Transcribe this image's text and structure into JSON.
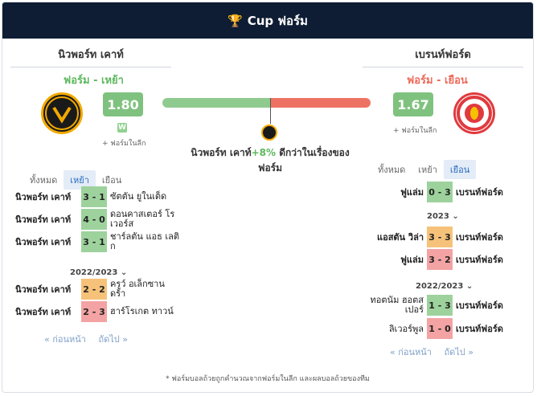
{
  "header": {
    "title": "Cup ฟอร์ม",
    "icon": "trophy-icon"
  },
  "home": {
    "name": "นิวพอร์ท เคาท์",
    "form_label": "ฟอร์ม - เหย้า",
    "rating": "1.80",
    "league_badge": "W",
    "league_form_label": "+ ฟอร์มในลีก"
  },
  "away": {
    "name": "เบรนท์ฟอร์ด",
    "form_label": "ฟอร์ม - เยือน",
    "rating": "1.67",
    "league_form_label": "+ ฟอร์มในลีก"
  },
  "comparison": {
    "home_share_pct": 52,
    "team": "นิวพอร์ท เคาท์",
    "pct": "+8%",
    "text": " ดีกว่าในเรื่องของ",
    "text2": "ฟอร์ม"
  },
  "left_tabs": [
    "ทั้งหมด",
    "เหย้า",
    "เยือน"
  ],
  "right_tabs": [
    "ทั้งหมด",
    "เหย้า",
    "เยือน"
  ],
  "left_matches": [
    {
      "home": "นิวพอร์ท เคาท์",
      "score": "3 - 1",
      "result": "win",
      "away": "ซัตตัน ยูในเต็ด"
    },
    {
      "home": "นิวพอร์ท เคาท์",
      "score": "4 - 0",
      "result": "win",
      "away": "ดอนคาสเตอร์ โรเวอร์ส"
    },
    {
      "home": "นิวพอร์ท เคาท์",
      "score": "3 - 1",
      "result": "win",
      "away": "ชาร์ลตัน แอธ เลติก"
    }
  ],
  "left_season": "2022/2023",
  "left_matches_2": [
    {
      "home": "นิวพอร์ท เคาท์",
      "score": "2 - 2",
      "result": "draw",
      "away": "ครูว์ อเล็กซาน ดร้า"
    },
    {
      "home": "นิวพอร์ท เคาท์",
      "score": "2 - 3",
      "result": "loss",
      "away": "ฮาร์โรเกต ทาวน์"
    }
  ],
  "right_matches": [
    {
      "home": "ฟูแล่ม",
      "score": "0 - 3",
      "result": "win",
      "away": "เบรนท์ฟอร์ด"
    }
  ],
  "right_season": "2023",
  "right_matches_2": [
    {
      "home": "แอสตัน วิล่า",
      "score": "3 - 3",
      "result": "draw",
      "away": "เบรนท์ฟอร์ด"
    },
    {
      "home": "ฟูแล่ม",
      "score": "3 - 2",
      "result": "loss",
      "away": "เบรนท์ฟอร์ด"
    }
  ],
  "right_season_2": "2022/2023",
  "right_matches_3": [
    {
      "home": "ทอตนัม ฮอตส เปอร์",
      "score": "1 - 3",
      "result": "win",
      "away": "เบรนท์ฟอร์ด"
    },
    {
      "home": "ลิเวอร์พูล",
      "score": "1 - 0",
      "result": "loss",
      "away": "เบรนท์ฟอร์ด"
    }
  ],
  "pager": {
    "prev": "« ก่อนหน้า",
    "next": "ถัดไป »"
  },
  "footnote": "* ฟอร์มบอลถ้วยถูกคำนวณจากฟอร์มในลีก และผลบอลถ้วยของทีม"
}
